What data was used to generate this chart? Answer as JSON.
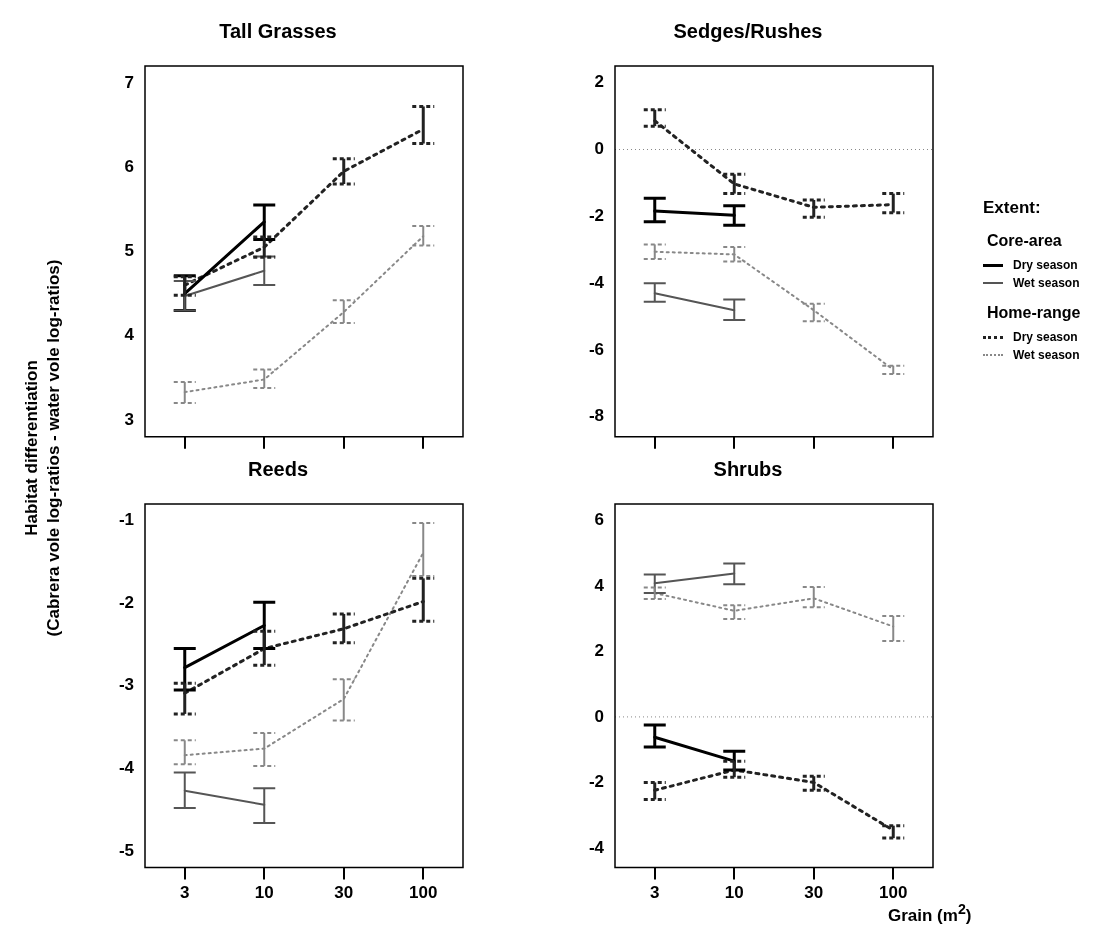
{
  "chart_data": [
    {
      "type": "line",
      "title": "Tall Grasses",
      "ylabel": "Habitat differentiation\n(Cabrera vole log-ratios - water vole log-ratios)",
      "categories": [
        "3",
        "10",
        "30",
        "100"
      ],
      "ylim": [
        2.8,
        7.2
      ],
      "yticks": [
        3,
        4,
        5,
        6,
        7
      ],
      "tick_labels": "y",
      "series": [
        {
          "color": "#000000",
          "line_style": "solid",
          "values": [
            4.5,
            5.35,
            null,
            null
          ],
          "errors": [
            [
              4.3,
              4.71
            ],
            [
              5.14,
              5.55
            ],
            null,
            null
          ]
        },
        {
          "color": "#555555",
          "line_style": "solid",
          "values": [
            4.47,
            4.77,
            null,
            null
          ],
          "errors": [
            [
              4.3,
              4.65
            ],
            [
              4.6,
              4.94
            ],
            null,
            null
          ]
        },
        {
          "color": "#222222",
          "line_style": "dotted",
          "values": [
            4.6,
            5.05,
            5.95,
            6.45
          ],
          "errors": [
            [
              4.48,
              4.7
            ],
            [
              4.93,
              5.17
            ],
            [
              5.8,
              6.1
            ],
            [
              6.28,
              6.72
            ]
          ]
        },
        {
          "color": "#888888",
          "line_style": "dotted",
          "values": [
            3.33,
            3.48,
            4.28,
            5.18
          ],
          "errors": [
            [
              3.2,
              3.45
            ],
            [
              3.38,
              3.6
            ],
            [
              4.15,
              4.42
            ],
            [
              5.07,
              5.3
            ]
          ]
        }
      ]
    },
    {
      "type": "line",
      "title": "Sedges/Rushes",
      "categories": [
        "3",
        "10",
        "30",
        "100"
      ],
      "ylim": [
        -8.6,
        2.5
      ],
      "yticks": [
        -8,
        -6,
        -4,
        -2,
        0,
        2
      ],
      "tick_labels": "y",
      "legend": "right",
      "legend_title": "Extent:",
      "annotations": [
        "Core-area",
        "Home-range"
      ],
      "ref_lines": [
        {
          "axis": "y",
          "value": 0,
          "line_style": "dotted",
          "color": "#888888"
        }
      ],
      "series": [
        {
          "name": "Dry season",
          "color": "#000000",
          "line_style": "solid",
          "values": [
            -1.84,
            -1.97,
            null,
            null
          ],
          "errors": [
            [
              -2.16,
              -1.46
            ],
            [
              -2.27,
              -1.68
            ],
            null,
            null
          ]
        },
        {
          "name": "Wet season",
          "color": "#555555",
          "line_style": "solid",
          "values": [
            -4.3,
            -4.81,
            null,
            null
          ],
          "errors": [
            [
              -4.56,
              -4.0
            ],
            [
              -5.1,
              -4.49
            ],
            null,
            null
          ]
        },
        {
          "name": "Dry season",
          "color": "#222222",
          "line_style": "dotted",
          "values": [
            0.86,
            -1.03,
            -1.73,
            -1.65
          ],
          "errors": [
            [
              0.7,
              1.19
            ],
            [
              -1.32,
              -0.74
            ],
            [
              -2.03,
              -1.51
            ],
            [
              -1.89,
              -1.32
            ]
          ]
        },
        {
          "name": "Wet season",
          "color": "#888888",
          "line_style": "dotted",
          "values": [
            -3.06,
            -3.14,
            -4.81,
            -6.59
          ],
          "errors": [
            [
              -3.28,
              -2.84
            ],
            [
              -3.35,
              -2.92
            ],
            [
              -5.14,
              -4.62
            ],
            [
              -6.72,
              -6.47
            ]
          ]
        }
      ]
    },
    {
      "type": "line",
      "title": "Reeds",
      "categories": [
        "3",
        "10",
        "30",
        "100"
      ],
      "ylim": [
        -5.2,
        -0.8
      ],
      "yticks": [
        -5,
        -4,
        -3,
        -2,
        -1
      ],
      "series": [
        {
          "color": "#000000",
          "line_style": "solid",
          "values": [
            -2.78,
            -2.27,
            null,
            null
          ],
          "errors": [
            [
              -3.05,
              -2.55
            ],
            [
              -2.55,
              -1.99
            ],
            null,
            null
          ]
        },
        {
          "color": "#555555",
          "line_style": "solid",
          "values": [
            -4.27,
            -4.44,
            null,
            null
          ],
          "errors": [
            [
              -4.48,
              -4.05
            ],
            [
              -4.66,
              -4.24
            ],
            null,
            null
          ]
        },
        {
          "color": "#222222",
          "line_style": "dotted",
          "values": [
            -3.09,
            -2.55,
            -2.31,
            -1.98
          ],
          "errors": [
            [
              -3.34,
              -2.97
            ],
            [
              -2.75,
              -2.34
            ],
            [
              -2.48,
              -2.13
            ],
            [
              -2.22,
              -1.7
            ]
          ]
        },
        {
          "color": "#888888",
          "line_style": "dotted",
          "values": [
            -3.84,
            -3.76,
            -3.16,
            -1.39
          ],
          "errors": [
            [
              -3.95,
              -3.66
            ],
            [
              -3.97,
              -3.57
            ],
            [
              -3.42,
              -2.92
            ],
            [
              -1.67,
              -1.03
            ]
          ]
        }
      ]
    },
    {
      "type": "line",
      "title": "Shrubs",
      "xlabel": "Grain (m$^{2}$)",
      "categories": [
        "3",
        "10",
        "30",
        "100"
      ],
      "ylim": [
        -4.6,
        6.5
      ],
      "yticks": [
        -4,
        -2,
        0,
        2,
        4,
        6
      ],
      "ref_lines": [
        {
          "axis": "y",
          "value": 0,
          "line_style": "dotted",
          "color": "#888888"
        }
      ],
      "series": [
        {
          "color": "#000000",
          "line_style": "solid",
          "values": [
            -0.62,
            -1.35,
            null,
            null
          ],
          "errors": [
            [
              -0.92,
              -0.25
            ],
            [
              -1.62,
              -1.05
            ],
            null,
            null
          ]
        },
        {
          "color": "#555555",
          "line_style": "solid",
          "values": [
            4.08,
            4.38,
            null,
            null
          ],
          "errors": [
            [
              3.78,
              4.35
            ],
            [
              4.05,
              4.68
            ],
            null,
            null
          ]
        },
        {
          "color": "#222222",
          "line_style": "dotted",
          "values": [
            -2.24,
            -1.62,
            -2.0,
            -3.46
          ],
          "errors": [
            [
              -2.52,
              -2.0
            ],
            [
              -1.84,
              -1.35
            ],
            [
              -2.24,
              -1.81
            ],
            [
              -3.7,
              -3.32
            ]
          ]
        },
        {
          "color": "#888888",
          "line_style": "dotted",
          "values": [
            3.78,
            3.24,
            3.62,
            2.76
          ],
          "errors": [
            [
              3.6,
              3.95
            ],
            [
              2.99,
              3.41
            ],
            [
              3.35,
              3.97
            ],
            [
              2.32,
              3.08
            ]
          ]
        }
      ]
    }
  ]
}
